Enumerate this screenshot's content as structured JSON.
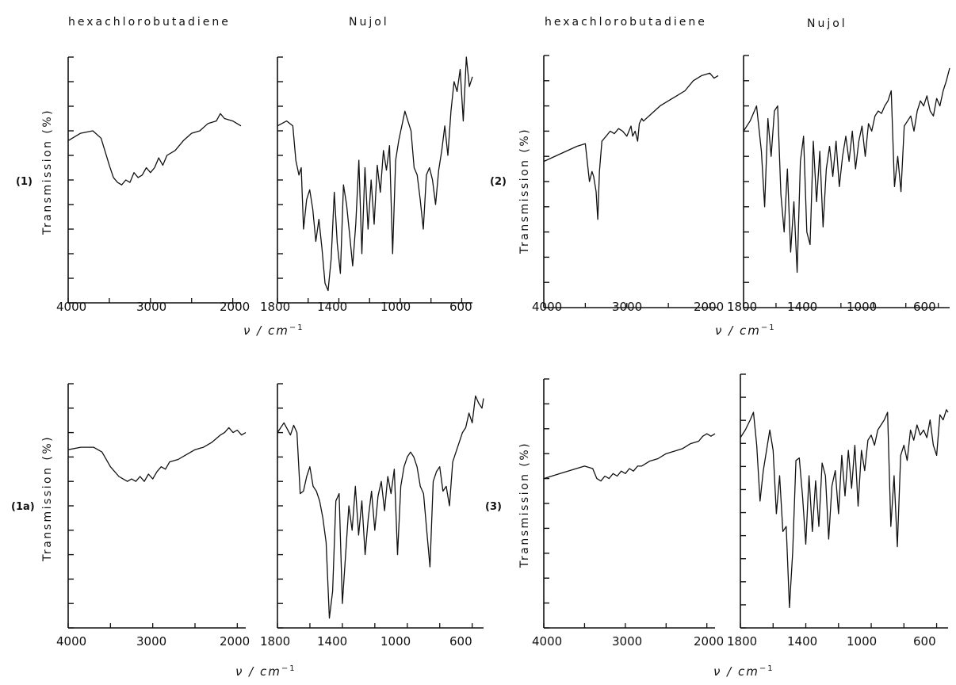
{
  "figure": {
    "headers": {
      "left_hcb": "hexachlorobutadiene",
      "left_nujol": "Nujol",
      "right_hcb": "hexachlorobutadiene",
      "right_nujol": "Nujol"
    },
    "ylabel": "Transmission (%)",
    "xlabel_main": "ν / cm",
    "xlabel_exp": "−1",
    "compounds": [
      "(1)",
      "(2)",
      "(1a)",
      "(3)"
    ],
    "ticks_hcb": [
      "4000",
      "3000",
      "2000"
    ],
    "ticks_nujol": [
      "1800",
      "1400",
      "1000",
      "600"
    ]
  },
  "chart_data": [
    {
      "type": "line",
      "compound": "(1)",
      "medium": "hexachlorobutadiene",
      "xlim": [
        4000,
        1900
      ],
      "x": [
        4000,
        3850,
        3700,
        3600,
        3500,
        3450,
        3400,
        3350,
        3300,
        3250,
        3200,
        3150,
        3100,
        3050,
        3000,
        2950,
        2900,
        2850,
        2800,
        2700,
        2600,
        2500,
        2400,
        2300,
        2200,
        2150,
        2100,
        2000,
        1900
      ],
      "y": [
        0.66,
        0.69,
        0.7,
        0.67,
        0.56,
        0.51,
        0.49,
        0.48,
        0.5,
        0.49,
        0.53,
        0.51,
        0.52,
        0.55,
        0.53,
        0.55,
        0.59,
        0.56,
        0.6,
        0.62,
        0.66,
        0.69,
        0.7,
        0.73,
        0.74,
        0.77,
        0.75,
        0.74,
        0.72
      ]
    },
    {
      "type": "line",
      "compound": "(1)",
      "medium": "Nujol",
      "xlim": [
        1800,
        530
      ],
      "x": [
        1800,
        1740,
        1700,
        1680,
        1660,
        1645,
        1630,
        1610,
        1590,
        1570,
        1550,
        1530,
        1510,
        1490,
        1470,
        1450,
        1430,
        1410,
        1390,
        1370,
        1350,
        1330,
        1310,
        1290,
        1270,
        1250,
        1230,
        1210,
        1190,
        1170,
        1150,
        1130,
        1110,
        1090,
        1070,
        1050,
        1030,
        1010,
        990,
        970,
        950,
        930,
        910,
        890,
        870,
        850,
        830,
        810,
        790,
        770,
        750,
        730,
        710,
        690,
        670,
        650,
        630,
        610,
        590,
        570,
        550,
        530
      ],
      "y": [
        0.72,
        0.74,
        0.72,
        0.58,
        0.52,
        0.55,
        0.3,
        0.42,
        0.46,
        0.38,
        0.25,
        0.34,
        0.22,
        0.08,
        0.05,
        0.18,
        0.45,
        0.24,
        0.12,
        0.48,
        0.4,
        0.28,
        0.15,
        0.32,
        0.58,
        0.2,
        0.55,
        0.3,
        0.5,
        0.32,
        0.56,
        0.45,
        0.62,
        0.54,
        0.64,
        0.2,
        0.58,
        0.66,
        0.72,
        0.78,
        0.74,
        0.7,
        0.55,
        0.52,
        0.42,
        0.3,
        0.52,
        0.55,
        0.5,
        0.4,
        0.54,
        0.62,
        0.72,
        0.6,
        0.78,
        0.9,
        0.86,
        0.95,
        0.74,
        1.0,
        0.88,
        0.92
      ]
    },
    {
      "type": "line",
      "compound": "(2)",
      "medium": "hexachlorobutadiene",
      "xlim": [
        4000,
        1900
      ],
      "x": [
        4000,
        3800,
        3600,
        3500,
        3450,
        3420,
        3400,
        3370,
        3350,
        3330,
        3300,
        3250,
        3200,
        3150,
        3100,
        3050,
        3000,
        2950,
        2930,
        2900,
        2870,
        2850,
        2820,
        2800,
        2700,
        2600,
        2500,
        2400,
        2300,
        2200,
        2100,
        2000,
        1950,
        1900
      ],
      "y": [
        0.58,
        0.61,
        0.64,
        0.65,
        0.5,
        0.54,
        0.52,
        0.46,
        0.35,
        0.54,
        0.66,
        0.68,
        0.7,
        0.69,
        0.71,
        0.7,
        0.68,
        0.72,
        0.68,
        0.7,
        0.66,
        0.73,
        0.75,
        0.74,
        0.77,
        0.8,
        0.82,
        0.84,
        0.86,
        0.9,
        0.92,
        0.93,
        0.91,
        0.92
      ]
    },
    {
      "type": "line",
      "compound": "(2)",
      "medium": "Nujol",
      "xlim": [
        1800,
        530
      ],
      "x": [
        1800,
        1760,
        1720,
        1690,
        1670,
        1650,
        1630,
        1610,
        1590,
        1570,
        1550,
        1530,
        1510,
        1490,
        1470,
        1450,
        1430,
        1410,
        1390,
        1370,
        1350,
        1330,
        1310,
        1290,
        1270,
        1250,
        1230,
        1210,
        1190,
        1170,
        1150,
        1130,
        1110,
        1090,
        1070,
        1050,
        1030,
        1010,
        990,
        970,
        950,
        930,
        910,
        890,
        870,
        850,
        830,
        810,
        790,
        770,
        750,
        730,
        710,
        690,
        670,
        650,
        630,
        610,
        590,
        570,
        550,
        530
      ],
      "y": [
        0.7,
        0.74,
        0.8,
        0.62,
        0.4,
        0.75,
        0.6,
        0.78,
        0.8,
        0.45,
        0.3,
        0.55,
        0.22,
        0.42,
        0.14,
        0.58,
        0.68,
        0.3,
        0.25,
        0.66,
        0.42,
        0.62,
        0.32,
        0.55,
        0.64,
        0.52,
        0.66,
        0.48,
        0.6,
        0.68,
        0.58,
        0.7,
        0.55,
        0.66,
        0.72,
        0.6,
        0.73,
        0.7,
        0.76,
        0.78,
        0.77,
        0.8,
        0.82,
        0.86,
        0.48,
        0.6,
        0.46,
        0.72,
        0.74,
        0.76,
        0.7,
        0.78,
        0.82,
        0.8,
        0.84,
        0.78,
        0.76,
        0.83,
        0.8,
        0.86,
        0.9,
        0.95
      ]
    },
    {
      "type": "line",
      "compound": "(1a)",
      "medium": "hexachlorobutadiene",
      "xlim": [
        4000,
        1900
      ],
      "x": [
        4000,
        3850,
        3700,
        3600,
        3500,
        3400,
        3350,
        3300,
        3250,
        3200,
        3150,
        3100,
        3050,
        3000,
        2950,
        2900,
        2850,
        2800,
        2700,
        2600,
        2500,
        2400,
        2300,
        2200,
        2150,
        2100,
        2050,
        2000,
        1950,
        1900
      ],
      "y": [
        0.73,
        0.74,
        0.74,
        0.72,
        0.66,
        0.62,
        0.61,
        0.6,
        0.61,
        0.6,
        0.62,
        0.6,
        0.63,
        0.61,
        0.64,
        0.66,
        0.65,
        0.68,
        0.69,
        0.71,
        0.73,
        0.74,
        0.76,
        0.79,
        0.8,
        0.82,
        0.8,
        0.81,
        0.79,
        0.8
      ]
    },
    {
      "type": "line",
      "compound": "(1a)",
      "medium": "Nujol",
      "xlim": [
        1800,
        530
      ],
      "x": [
        1800,
        1760,
        1720,
        1700,
        1680,
        1660,
        1640,
        1620,
        1600,
        1580,
        1560,
        1540,
        1520,
        1500,
        1480,
        1460,
        1440,
        1420,
        1400,
        1380,
        1360,
        1340,
        1320,
        1300,
        1280,
        1260,
        1240,
        1220,
        1200,
        1180,
        1160,
        1140,
        1120,
        1100,
        1080,
        1060,
        1040,
        1020,
        1000,
        980,
        960,
        940,
        920,
        900,
        880,
        860,
        840,
        820,
        800,
        780,
        760,
        740,
        720,
        700,
        680,
        660,
        640,
        620,
        600,
        580,
        560,
        540,
        530
      ],
      "y": [
        0.8,
        0.84,
        0.79,
        0.83,
        0.8,
        0.55,
        0.56,
        0.62,
        0.66,
        0.58,
        0.56,
        0.52,
        0.45,
        0.35,
        0.04,
        0.15,
        0.52,
        0.55,
        0.1,
        0.3,
        0.5,
        0.4,
        0.58,
        0.38,
        0.52,
        0.3,
        0.45,
        0.56,
        0.4,
        0.54,
        0.6,
        0.48,
        0.62,
        0.55,
        0.65,
        0.3,
        0.58,
        0.66,
        0.7,
        0.72,
        0.7,
        0.66,
        0.58,
        0.55,
        0.4,
        0.25,
        0.6,
        0.64,
        0.66,
        0.56,
        0.58,
        0.5,
        0.68,
        0.72,
        0.76,
        0.8,
        0.82,
        0.88,
        0.84,
        0.95,
        0.92,
        0.9,
        0.94
      ]
    },
    {
      "type": "line",
      "compound": "(3)",
      "medium": "hexachlorobutadiene",
      "xlim": [
        4000,
        1900
      ],
      "x": [
        4000,
        3800,
        3600,
        3500,
        3400,
        3350,
        3300,
        3250,
        3200,
        3150,
        3100,
        3050,
        3000,
        2950,
        2900,
        2850,
        2800,
        2700,
        2600,
        2500,
        2400,
        2300,
        2200,
        2100,
        2050,
        2000,
        1950,
        1900
      ],
      "y": [
        0.6,
        0.62,
        0.64,
        0.65,
        0.64,
        0.6,
        0.59,
        0.61,
        0.6,
        0.62,
        0.61,
        0.63,
        0.62,
        0.64,
        0.63,
        0.65,
        0.65,
        0.67,
        0.68,
        0.7,
        0.71,
        0.72,
        0.74,
        0.75,
        0.77,
        0.78,
        0.77,
        0.78
      ]
    },
    {
      "type": "line",
      "compound": "(3)",
      "medium": "Nujol",
      "xlim": [
        1800,
        530
      ],
      "x": [
        1800,
        1770,
        1740,
        1720,
        1700,
        1680,
        1660,
        1640,
        1620,
        1600,
        1580,
        1560,
        1540,
        1520,
        1500,
        1480,
        1460,
        1440,
        1420,
        1400,
        1380,
        1360,
        1340,
        1320,
        1300,
        1280,
        1260,
        1240,
        1220,
        1200,
        1180,
        1160,
        1140,
        1120,
        1100,
        1080,
        1060,
        1040,
        1020,
        1000,
        980,
        960,
        940,
        920,
        900,
        880,
        860,
        840,
        820,
        800,
        780,
        760,
        740,
        720,
        700,
        680,
        660,
        640,
        620,
        600,
        580,
        560,
        540,
        530
      ],
      "y": [
        0.75,
        0.78,
        0.82,
        0.85,
        0.72,
        0.5,
        0.62,
        0.7,
        0.78,
        0.7,
        0.45,
        0.6,
        0.38,
        0.4,
        0.08,
        0.3,
        0.66,
        0.67,
        0.52,
        0.33,
        0.6,
        0.38,
        0.58,
        0.4,
        0.65,
        0.6,
        0.35,
        0.56,
        0.62,
        0.45,
        0.68,
        0.52,
        0.7,
        0.55,
        0.72,
        0.48,
        0.7,
        0.62,
        0.74,
        0.76,
        0.72,
        0.78,
        0.8,
        0.82,
        0.85,
        0.4,
        0.6,
        0.32,
        0.68,
        0.72,
        0.66,
        0.78,
        0.74,
        0.8,
        0.76,
        0.78,
        0.75,
        0.82,
        0.72,
        0.68,
        0.84,
        0.82,
        0.86,
        0.85
      ]
    }
  ]
}
